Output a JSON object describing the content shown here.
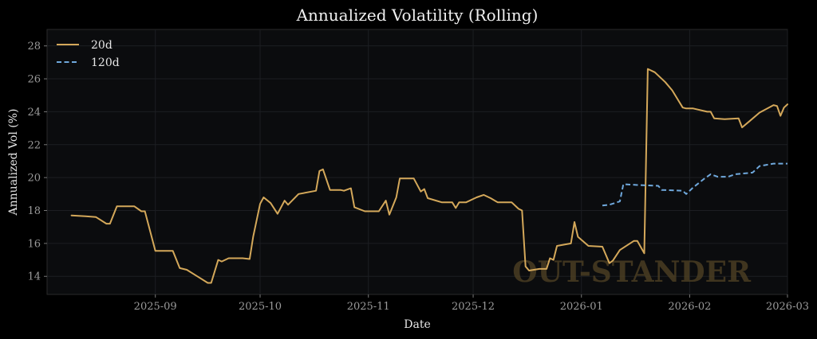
{
  "chart_data": {
    "type": "line",
    "title": "Annualized Volatility (Rolling)",
    "xlabel": "Date",
    "ylabel": "Annualized Vol (%)",
    "xlim": [
      "2025-08-01",
      "2026-03-01"
    ],
    "ylim": [
      12.9,
      29.0
    ],
    "grid": true,
    "legend_position": "top-left",
    "watermark": "OUT-STANDER",
    "x_ticks": [
      {
        "date": "2025-09-01",
        "label": "2025-09"
      },
      {
        "date": "2025-10-01",
        "label": "2025-10"
      },
      {
        "date": "2025-11-01",
        "label": "2025-11"
      },
      {
        "date": "2025-12-01",
        "label": "2025-12"
      },
      {
        "date": "2026-01-01",
        "label": "2026-01"
      },
      {
        "date": "2026-02-01",
        "label": "2026-02"
      },
      {
        "date": "2026-03-01",
        "label": "2026-03"
      }
    ],
    "y_ticks": [
      14,
      16,
      18,
      20,
      22,
      24,
      26,
      28
    ],
    "colors": {
      "20d": "#d4a85a",
      "120d": "#6fa8dc"
    },
    "series": [
      {
        "name": "20d",
        "style": "solid",
        "points": [
          [
            "2025-08-08",
            17.7
          ],
          [
            "2025-08-12",
            17.65
          ],
          [
            "2025-08-15",
            17.6
          ],
          [
            "2025-08-18",
            17.2
          ],
          [
            "2025-08-19",
            17.2
          ],
          [
            "2025-08-21",
            18.25
          ],
          [
            "2025-08-26",
            18.25
          ],
          [
            "2025-08-28",
            17.95
          ],
          [
            "2025-08-29",
            17.95
          ],
          [
            "2025-09-01",
            15.55
          ],
          [
            "2025-09-05",
            15.55
          ],
          [
            "2025-09-06",
            15.55
          ],
          [
            "2025-09-08",
            14.5
          ],
          [
            "2025-09-10",
            14.4
          ],
          [
            "2025-09-13",
            14.0
          ],
          [
            "2025-09-16",
            13.6
          ],
          [
            "2025-09-17",
            13.6
          ],
          [
            "2025-09-19",
            15.0
          ],
          [
            "2025-09-20",
            14.9
          ],
          [
            "2025-09-22",
            15.1
          ],
          [
            "2025-09-26",
            15.1
          ],
          [
            "2025-09-28",
            15.05
          ],
          [
            "2025-09-29",
            16.4
          ],
          [
            "2025-10-01",
            18.4
          ],
          [
            "2025-10-02",
            18.8
          ],
          [
            "2025-10-04",
            18.45
          ],
          [
            "2025-10-06",
            17.8
          ],
          [
            "2025-10-08",
            18.6
          ],
          [
            "2025-10-09",
            18.35
          ],
          [
            "2025-10-12",
            19.0
          ],
          [
            "2025-10-17",
            19.2
          ],
          [
            "2025-10-18",
            20.4
          ],
          [
            "2025-10-19",
            20.5
          ],
          [
            "2025-10-21",
            19.25
          ],
          [
            "2025-10-24",
            19.25
          ],
          [
            "2025-10-25",
            19.2
          ],
          [
            "2025-10-27",
            19.35
          ],
          [
            "2025-10-28",
            18.2
          ],
          [
            "2025-10-31",
            17.95
          ],
          [
            "2025-11-02",
            17.95
          ],
          [
            "2025-11-04",
            17.95
          ],
          [
            "2025-11-06",
            18.6
          ],
          [
            "2025-11-07",
            17.75
          ],
          [
            "2025-11-09",
            18.8
          ],
          [
            "2025-11-10",
            19.95
          ],
          [
            "2025-11-14",
            19.95
          ],
          [
            "2025-11-16",
            19.15
          ],
          [
            "2025-11-17",
            19.3
          ],
          [
            "2025-11-18",
            18.75
          ],
          [
            "2025-11-22",
            18.5
          ],
          [
            "2025-11-25",
            18.5
          ],
          [
            "2025-11-26",
            18.15
          ],
          [
            "2025-11-27",
            18.5
          ],
          [
            "2025-11-29",
            18.5
          ],
          [
            "2025-12-02",
            18.8
          ],
          [
            "2025-12-04",
            18.95
          ],
          [
            "2025-12-06",
            18.75
          ],
          [
            "2025-12-08",
            18.5
          ],
          [
            "2025-12-12",
            18.5
          ],
          [
            "2025-12-14",
            18.1
          ],
          [
            "2025-12-15",
            18.0
          ],
          [
            "2025-12-16",
            14.6
          ],
          [
            "2025-12-17",
            14.35
          ],
          [
            "2025-12-20",
            14.45
          ],
          [
            "2025-12-22",
            14.45
          ],
          [
            "2025-12-23",
            15.1
          ],
          [
            "2025-12-24",
            15.0
          ],
          [
            "2025-12-25",
            15.85
          ],
          [
            "2025-12-29",
            16.0
          ],
          [
            "2025-12-30",
            17.3
          ],
          [
            "2025-12-31",
            16.4
          ],
          [
            "2026-01-03",
            15.85
          ],
          [
            "2026-01-07",
            15.8
          ],
          [
            "2026-01-09",
            14.8
          ],
          [
            "2026-01-10",
            14.95
          ],
          [
            "2026-01-12",
            15.6
          ],
          [
            "2026-01-16",
            16.15
          ],
          [
            "2026-01-17",
            16.15
          ],
          [
            "2026-01-19",
            15.4
          ],
          [
            "2026-01-20",
            26.6
          ],
          [
            "2026-01-22",
            26.4
          ],
          [
            "2026-01-25",
            25.8
          ],
          [
            "2026-01-27",
            25.3
          ],
          [
            "2026-01-30",
            24.25
          ],
          [
            "2026-01-31",
            24.2
          ],
          [
            "2026-02-02",
            24.2
          ],
          [
            "2026-02-06",
            24.0
          ],
          [
            "2026-02-07",
            24.0
          ],
          [
            "2026-02-08",
            23.6
          ],
          [
            "2026-02-11",
            23.55
          ],
          [
            "2026-02-15",
            23.6
          ],
          [
            "2026-02-16",
            23.05
          ],
          [
            "2026-02-18",
            23.4
          ],
          [
            "2026-02-21",
            23.95
          ],
          [
            "2026-02-25",
            24.4
          ],
          [
            "2026-02-26",
            24.35
          ],
          [
            "2026-02-27",
            23.75
          ],
          [
            "2026-02-28",
            24.25
          ],
          [
            "2026-03-01",
            24.45
          ]
        ]
      },
      {
        "name": "120d",
        "style": "dashed",
        "points": [
          [
            "2026-01-07",
            18.3
          ],
          [
            "2026-01-09",
            18.35
          ],
          [
            "2026-01-12",
            18.55
          ],
          [
            "2026-01-13",
            19.6
          ],
          [
            "2026-01-17",
            19.55
          ],
          [
            "2026-01-23",
            19.5
          ],
          [
            "2026-01-24",
            19.25
          ],
          [
            "2026-01-30",
            19.2
          ],
          [
            "2026-01-31",
            19.0
          ],
          [
            "2026-02-02",
            19.4
          ],
          [
            "2026-02-05",
            19.9
          ],
          [
            "2026-02-07",
            20.2
          ],
          [
            "2026-02-09",
            20.05
          ],
          [
            "2026-02-12",
            20.05
          ],
          [
            "2026-02-14",
            20.2
          ],
          [
            "2026-02-19",
            20.3
          ],
          [
            "2026-02-21",
            20.7
          ],
          [
            "2026-02-25",
            20.85
          ],
          [
            "2026-03-01",
            20.85
          ]
        ]
      }
    ]
  }
}
